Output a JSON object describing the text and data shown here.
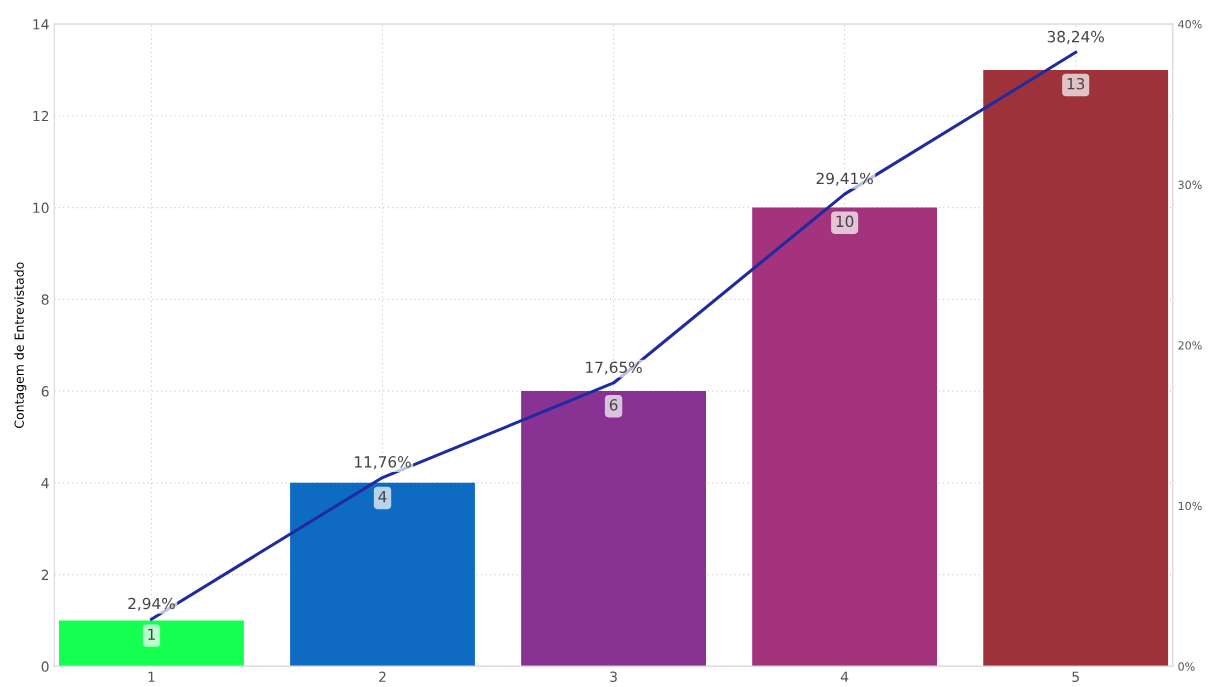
{
  "chart_data": {
    "type": "bar",
    "ylabel": "Contagem de Entrevistado",
    "categories": [
      "1",
      "2",
      "3",
      "4",
      "5"
    ],
    "series": [
      {
        "colors": [
          "#14ff50",
          "#0f6bc1",
          "#883393",
          "#a3337d",
          "#9e323b"
        ],
        "values": [
          1,
          4,
          6,
          10,
          13
        ],
        "data_labels": true
      },
      {
        "type": "line",
        "axis": "y2",
        "color": "#1f2b9e",
        "values": [
          2.94,
          11.76,
          17.65,
          29.41,
          38.24
        ],
        "value_labels": [
          "2,94%",
          "11,76%",
          "17,65%",
          "29,41%",
          "38,24%"
        ]
      }
    ],
    "ylim": [
      0,
      14
    ],
    "yticks": [
      0,
      2,
      4,
      6,
      8,
      10,
      12,
      14
    ],
    "y2lim": [
      0,
      40
    ],
    "y2ticks": [
      {
        "value": 0,
        "label": "0%"
      },
      {
        "value": 10,
        "label": "10%"
      },
      {
        "value": 20,
        "label": "20%"
      },
      {
        "value": 30,
        "label": "30%"
      },
      {
        "value": 40,
        "label": "40%"
      }
    ],
    "grid": true
  }
}
